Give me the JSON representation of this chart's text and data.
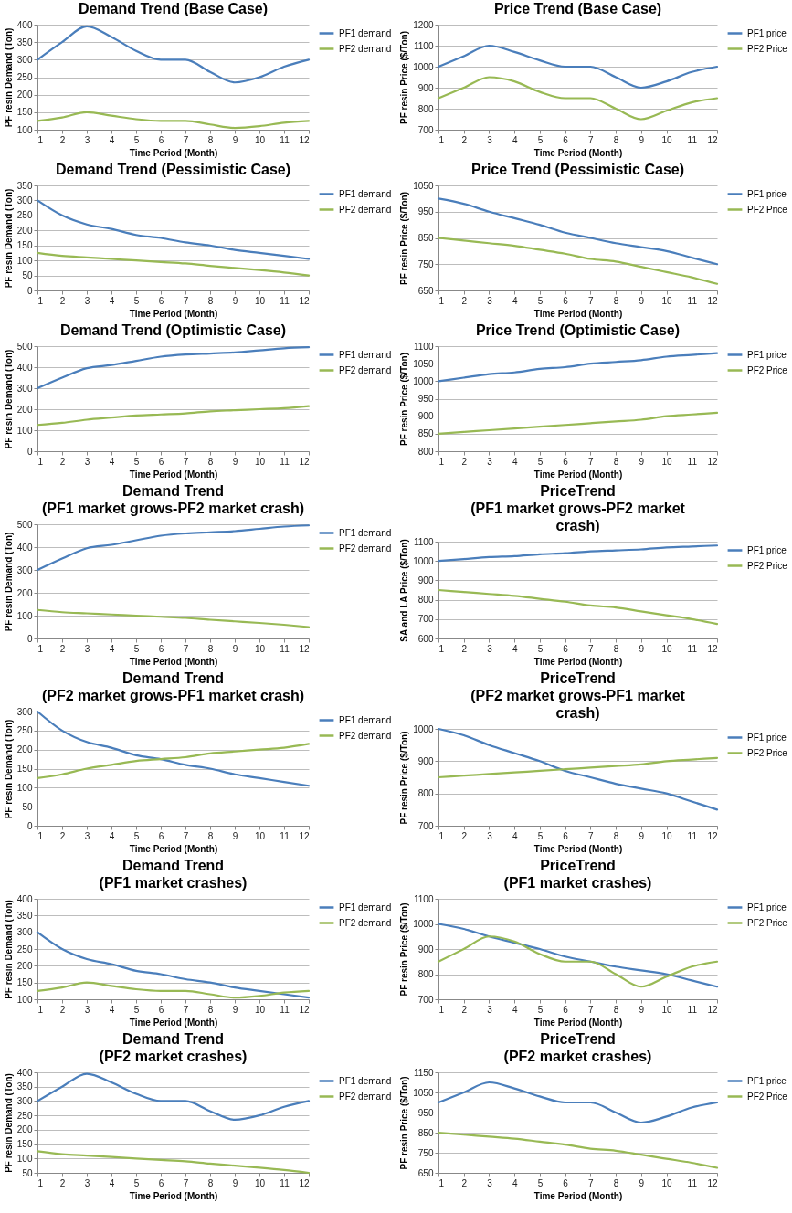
{
  "chart_data": [
    {
      "type": "line",
      "title": "Demand Trend (Base Case)",
      "xlabel": "Time Period (Month)",
      "ylabel": "PF resin Demand (Ton)",
      "x": [
        1,
        2,
        3,
        4,
        5,
        6,
        7,
        8,
        9,
        10,
        11,
        12
      ],
      "xlim": [
        1,
        12
      ],
      "xticks": [
        1,
        2,
        3,
        4,
        5,
        6,
        7,
        8,
        9,
        10,
        11,
        12
      ],
      "ylim": [
        100,
        400
      ],
      "yticks": [
        100,
        150,
        200,
        250,
        300,
        350,
        400
      ],
      "grid": "y",
      "legend": "right",
      "series": [
        {
          "name": "PF1 demand",
          "color": "#4a7ebb",
          "values": [
            300,
            350,
            395,
            365,
            325,
            300,
            300,
            265,
            235,
            250,
            280,
            300
          ]
        },
        {
          "name": "PF2 demand",
          "color": "#98b954",
          "values": [
            125,
            135,
            150,
            140,
            130,
            125,
            125,
            115,
            105,
            110,
            120,
            125
          ]
        }
      ]
    },
    {
      "type": "line",
      "title": "Price Trend (Base Case)",
      "xlabel": "Time Period (Month)",
      "ylabel": "PF resin Price ($/Ton)",
      "x": [
        1,
        2,
        3,
        4,
        5,
        6,
        7,
        8,
        9,
        10,
        11,
        12
      ],
      "xlim": [
        1,
        12
      ],
      "xticks": [
        1,
        2,
        3,
        4,
        5,
        6,
        7,
        8,
        9,
        10,
        11,
        12
      ],
      "ylim": [
        700,
        1200
      ],
      "yticks": [
        700,
        800,
        900,
        1000,
        1100,
        1200
      ],
      "grid": "y",
      "legend": "right",
      "series": [
        {
          "name": "PF1 price",
          "color": "#4a7ebb",
          "values": [
            1000,
            1050,
            1100,
            1070,
            1030,
            1000,
            1000,
            950,
            900,
            930,
            975,
            1000
          ]
        },
        {
          "name": "PF2 Price",
          "color": "#98b954",
          "values": [
            850,
            900,
            950,
            930,
            880,
            850,
            850,
            800,
            750,
            790,
            830,
            850
          ]
        }
      ]
    },
    {
      "type": "line",
      "title": "Demand Trend (Pessimistic Case)",
      "xlabel": "Time Period (Month)",
      "ylabel": "PF resin Demand (Ton)",
      "x": [
        1,
        2,
        3,
        4,
        5,
        6,
        7,
        8,
        9,
        10,
        11,
        12
      ],
      "xlim": [
        1,
        12
      ],
      "xticks": [
        1,
        2,
        3,
        4,
        5,
        6,
        7,
        8,
        9,
        10,
        11,
        12
      ],
      "ylim": [
        0,
        350
      ],
      "yticks": [
        0,
        50,
        100,
        150,
        200,
        250,
        300,
        350
      ],
      "grid": "y",
      "legend": "right",
      "series": [
        {
          "name": "PF1 demand",
          "color": "#4a7ebb",
          "values": [
            300,
            250,
            220,
            205,
            185,
            175,
            160,
            150,
            135,
            125,
            115,
            105
          ]
        },
        {
          "name": "PF2 demand",
          "color": "#98b954",
          "values": [
            125,
            115,
            110,
            105,
            100,
            95,
            90,
            82,
            75,
            68,
            60,
            50
          ]
        }
      ]
    },
    {
      "type": "line",
      "title": "Price Trend (Pessimistic Case)",
      "xlabel": "Time Period (Month)",
      "ylabel": "PF resin Price ($/Ton)",
      "x": [
        1,
        2,
        3,
        4,
        5,
        6,
        7,
        8,
        9,
        10,
        11,
        12
      ],
      "xlim": [
        1,
        12
      ],
      "xticks": [
        1,
        2,
        3,
        4,
        5,
        6,
        7,
        8,
        9,
        10,
        11,
        12
      ],
      "ylim": [
        650,
        1050
      ],
      "yticks": [
        650,
        750,
        850,
        950,
        1050
      ],
      "grid": "y",
      "legend": "right",
      "series": [
        {
          "name": "PF1 price",
          "color": "#4a7ebb",
          "values": [
            1000,
            980,
            950,
            925,
            900,
            870,
            850,
            830,
            815,
            800,
            775,
            750
          ]
        },
        {
          "name": "PF2 Price",
          "color": "#98b954",
          "values": [
            850,
            840,
            830,
            820,
            805,
            790,
            770,
            760,
            740,
            720,
            700,
            675
          ]
        }
      ]
    },
    {
      "type": "line",
      "title": "Demand Trend (Optimistic Case)",
      "xlabel": "Time Period (Month)",
      "ylabel": "PF resin Demand (Ton)",
      "x": [
        1,
        2,
        3,
        4,
        5,
        6,
        7,
        8,
        9,
        10,
        11,
        12
      ],
      "xlim": [
        1,
        12
      ],
      "xticks": [
        1,
        2,
        3,
        4,
        5,
        6,
        7,
        8,
        9,
        10,
        11,
        12
      ],
      "ylim": [
        0,
        500
      ],
      "yticks": [
        0,
        100,
        200,
        300,
        400,
        500
      ],
      "grid": "y",
      "legend": "right",
      "series": [
        {
          "name": "PF1 demand",
          "color": "#4a7ebb",
          "values": [
            300,
            350,
            395,
            410,
            430,
            450,
            460,
            465,
            470,
            480,
            490,
            495
          ]
        },
        {
          "name": "PF2 demand",
          "color": "#98b954",
          "values": [
            125,
            135,
            150,
            160,
            170,
            175,
            180,
            190,
            195,
            200,
            205,
            215
          ]
        }
      ]
    },
    {
      "type": "line",
      "title": "Price Trend (Optimistic Case)",
      "xlabel": "Time Period (Month)",
      "ylabel": "PF resin Price ($/Ton)",
      "x": [
        1,
        2,
        3,
        4,
        5,
        6,
        7,
        8,
        9,
        10,
        11,
        12
      ],
      "xlim": [
        1,
        12
      ],
      "xticks": [
        1,
        2,
        3,
        4,
        5,
        6,
        7,
        8,
        9,
        10,
        11,
        12
      ],
      "ylim": [
        800,
        1100
      ],
      "yticks": [
        800,
        850,
        900,
        950,
        1000,
        1050,
        1100
      ],
      "grid": "y",
      "legend": "right",
      "series": [
        {
          "name": "PF1 price",
          "color": "#4a7ebb",
          "values": [
            1000,
            1010,
            1020,
            1025,
            1035,
            1040,
            1050,
            1055,
            1060,
            1070,
            1075,
            1080
          ]
        },
        {
          "name": "PF2 Price",
          "color": "#98b954",
          "values": [
            850,
            855,
            860,
            865,
            870,
            875,
            880,
            885,
            890,
            900,
            905,
            910
          ]
        }
      ]
    },
    {
      "type": "line",
      "title": "Demand Trend\n(PF1 market grows-PF2 market crash)",
      "xlabel": "Time Period (Month)",
      "ylabel": "PF resin Demand (Ton)",
      "x": [
        1,
        2,
        3,
        4,
        5,
        6,
        7,
        8,
        9,
        10,
        11,
        12
      ],
      "xlim": [
        1,
        12
      ],
      "xticks": [
        1,
        2,
        3,
        4,
        5,
        6,
        7,
        8,
        9,
        10,
        11,
        12
      ],
      "ylim": [
        0,
        500
      ],
      "yticks": [
        0,
        100,
        200,
        300,
        400,
        500
      ],
      "grid": "y",
      "legend": "right",
      "series": [
        {
          "name": "PF1 demand",
          "color": "#4a7ebb",
          "values": [
            300,
            350,
            395,
            410,
            430,
            450,
            460,
            465,
            470,
            480,
            490,
            495
          ]
        },
        {
          "name": "PF2 demand",
          "color": "#98b954",
          "values": [
            125,
            115,
            110,
            105,
            100,
            95,
            90,
            82,
            75,
            68,
            60,
            50
          ]
        }
      ]
    },
    {
      "type": "line",
      "title": "PriceTrend\n(PF1 market grows-PF2 market\ncrash)",
      "xlabel": "Time Period (Month)",
      "ylabel": "SA and LA Price ($/Ton)",
      "x": [
        1,
        2,
        3,
        4,
        5,
        6,
        7,
        8,
        9,
        10,
        11,
        12
      ],
      "xlim": [
        1,
        12
      ],
      "xticks": [
        1,
        2,
        3,
        4,
        5,
        6,
        7,
        8,
        9,
        10,
        11,
        12
      ],
      "ylim": [
        600,
        1100
      ],
      "yticks": [
        600,
        700,
        800,
        900,
        1000,
        1100
      ],
      "grid": "y",
      "legend": "right",
      "series": [
        {
          "name": "PF1 price",
          "color": "#4a7ebb",
          "values": [
            1000,
            1010,
            1020,
            1025,
            1035,
            1040,
            1050,
            1055,
            1060,
            1070,
            1075,
            1080
          ]
        },
        {
          "name": "PF2 Price",
          "color": "#98b954",
          "values": [
            850,
            840,
            830,
            820,
            805,
            790,
            770,
            760,
            740,
            720,
            700,
            675
          ]
        }
      ]
    },
    {
      "type": "line",
      "title": "Demand Trend\n(PF2 market grows-PF1 market crash)",
      "xlabel": "Time Period (Month)",
      "ylabel": "PF resin Demand (Ton)",
      "x": [
        1,
        2,
        3,
        4,
        5,
        6,
        7,
        8,
        9,
        10,
        11,
        12
      ],
      "xlim": [
        1,
        12
      ],
      "xticks": [
        1,
        2,
        3,
        4,
        5,
        6,
        7,
        8,
        9,
        10,
        11,
        12
      ],
      "ylim": [
        0,
        300
      ],
      "yticks": [
        0,
        50,
        100,
        150,
        200,
        250,
        300
      ],
      "grid": "y",
      "legend": "right",
      "series": [
        {
          "name": "PF1 demand",
          "color": "#4a7ebb",
          "values": [
            300,
            250,
            220,
            205,
            185,
            175,
            160,
            150,
            135,
            125,
            115,
            105
          ]
        },
        {
          "name": "PF2 demand",
          "color": "#98b954",
          "values": [
            125,
            135,
            150,
            160,
            170,
            175,
            180,
            190,
            195,
            200,
            205,
            215
          ]
        }
      ]
    },
    {
      "type": "line",
      "title": "PriceTrend\n(PF2 market grows-PF1 market\ncrash)",
      "xlabel": "Time Period (Month)",
      "ylabel": "PF resin Price ($/Ton)",
      "x": [
        1,
        2,
        3,
        4,
        5,
        6,
        7,
        8,
        9,
        10,
        11,
        12
      ],
      "xlim": [
        1,
        12
      ],
      "xticks": [
        1,
        2,
        3,
        4,
        5,
        6,
        7,
        8,
        9,
        10,
        11,
        12
      ],
      "ylim": [
        700,
        1000
      ],
      "yticks": [
        700,
        800,
        900,
        1000
      ],
      "grid": "y",
      "legend": "right",
      "series": [
        {
          "name": "PF1 price",
          "color": "#4a7ebb",
          "values": [
            1000,
            980,
            950,
            925,
            900,
            870,
            850,
            830,
            815,
            800,
            775,
            750
          ]
        },
        {
          "name": "PF2 Price",
          "color": "#98b954",
          "values": [
            850,
            855,
            860,
            865,
            870,
            875,
            880,
            885,
            890,
            900,
            905,
            910
          ]
        }
      ]
    },
    {
      "type": "line",
      "title": "Demand Trend\n(PF1 market crashes)",
      "xlabel": "Time Period (Month)",
      "ylabel": "PF resin Demand (Ton)",
      "x": [
        1,
        2,
        3,
        4,
        5,
        6,
        7,
        8,
        9,
        10,
        11,
        12
      ],
      "xlim": [
        1,
        12
      ],
      "xticks": [
        1,
        2,
        3,
        4,
        5,
        6,
        7,
        8,
        9,
        10,
        11,
        12
      ],
      "ylim": [
        100,
        400
      ],
      "yticks": [
        100,
        150,
        200,
        250,
        300,
        350,
        400
      ],
      "grid": "y",
      "legend": "right",
      "series": [
        {
          "name": "PF1 demand",
          "color": "#4a7ebb",
          "values": [
            300,
            250,
            220,
            205,
            185,
            175,
            160,
            150,
            135,
            125,
            115,
            105
          ]
        },
        {
          "name": "PF2 demand",
          "color": "#98b954",
          "values": [
            125,
            135,
            150,
            140,
            130,
            125,
            125,
            115,
            105,
            110,
            120,
            125
          ]
        }
      ]
    },
    {
      "type": "line",
      "title": "PriceTrend\n(PF1 market crashes)",
      "xlabel": "Time Period (Month)",
      "ylabel": "PF resin Price ($/Ton)",
      "x": [
        1,
        2,
        3,
        4,
        5,
        6,
        7,
        8,
        9,
        10,
        11,
        12
      ],
      "xlim": [
        1,
        12
      ],
      "xticks": [
        1,
        2,
        3,
        4,
        5,
        6,
        7,
        8,
        9,
        10,
        11,
        12
      ],
      "ylim": [
        700,
        1100
      ],
      "yticks": [
        700,
        800,
        900,
        1000,
        1100
      ],
      "grid": "y",
      "legend": "right",
      "series": [
        {
          "name": "PF1 price",
          "color": "#4a7ebb",
          "values": [
            1000,
            980,
            950,
            925,
            900,
            870,
            850,
            830,
            815,
            800,
            775,
            750
          ]
        },
        {
          "name": "PF2 Price",
          "color": "#98b954",
          "values": [
            850,
            900,
            950,
            930,
            880,
            850,
            850,
            800,
            750,
            790,
            830,
            850
          ]
        }
      ]
    },
    {
      "type": "line",
      "title": "Demand Trend\n(PF2 market crashes)",
      "xlabel": "Time Period (Month)",
      "ylabel": "PF resin Demand (Ton)",
      "x": [
        1,
        2,
        3,
        4,
        5,
        6,
        7,
        8,
        9,
        10,
        11,
        12
      ],
      "xlim": [
        1,
        12
      ],
      "xticks": [
        1,
        2,
        3,
        4,
        5,
        6,
        7,
        8,
        9,
        10,
        11,
        12
      ],
      "ylim": [
        50,
        400
      ],
      "yticks": [
        50,
        100,
        150,
        200,
        250,
        300,
        350,
        400
      ],
      "grid": "y",
      "legend": "right",
      "series": [
        {
          "name": "PF1 demand",
          "color": "#4a7ebb",
          "values": [
            300,
            350,
            395,
            365,
            325,
            300,
            300,
            265,
            235,
            250,
            280,
            300
          ]
        },
        {
          "name": "PF2 demand",
          "color": "#98b954",
          "values": [
            125,
            115,
            110,
            105,
            100,
            95,
            90,
            82,
            75,
            68,
            60,
            50
          ]
        }
      ]
    },
    {
      "type": "line",
      "title": "PriceTrend\n(PF2 market crashes)",
      "xlabel": "Time Period (Month)",
      "ylabel": "PF resin Price ($/Ton)",
      "x": [
        1,
        2,
        3,
        4,
        5,
        6,
        7,
        8,
        9,
        10,
        11,
        12
      ],
      "xlim": [
        1,
        12
      ],
      "xticks": [
        1,
        2,
        3,
        4,
        5,
        6,
        7,
        8,
        9,
        10,
        11,
        12
      ],
      "ylim": [
        650,
        1150
      ],
      "yticks": [
        650,
        750,
        850,
        950,
        1050,
        1150
      ],
      "grid": "y",
      "legend": "right",
      "series": [
        {
          "name": "PF1 price",
          "color": "#4a7ebb",
          "values": [
            1000,
            1050,
            1100,
            1070,
            1030,
            1000,
            1000,
            950,
            900,
            930,
            975,
            1000
          ]
        },
        {
          "name": "PF2 Price",
          "color": "#98b954",
          "values": [
            850,
            840,
            830,
            820,
            805,
            790,
            770,
            760,
            740,
            720,
            700,
            675
          ]
        }
      ]
    }
  ]
}
